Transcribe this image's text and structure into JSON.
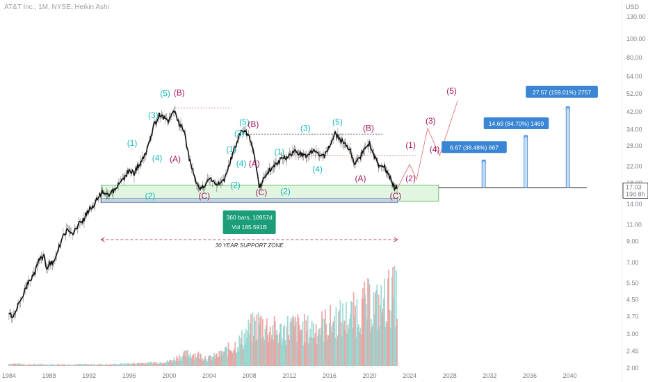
{
  "header": {
    "title": "AT&T Inc., 1M, NYSE, Heikin Ashi"
  },
  "colors": {
    "price": "#111111",
    "cyan": "#17b8bd",
    "purple": "#a3155a",
    "zone_fill": "#c8ecc9",
    "zone_border": "#4caf50",
    "info_box": "#1a9d78",
    "target_box": "#3a86d4",
    "vol_up": "#8fd3cc",
    "vol_down": "#ef9a9a"
  },
  "chart_data": {
    "type": "line",
    "title": "AT&T Inc., 1M, NYSE, Heikin Ashi",
    "y_scale": "log",
    "y_unit": "USD",
    "ylim": [
      2.0,
      130.0
    ],
    "xlim": [
      1983.8,
      2043.5
    ],
    "y_ticks": [
      130.0,
      100.0,
      80.0,
      64.0,
      52.0,
      42.0,
      34.0,
      28.0,
      22.0,
      18.0,
      14.0,
      11.0,
      9.0,
      7.0,
      5.5,
      4.5,
      3.7,
      3.0,
      2.45,
      2.0
    ],
    "y_tick_labels": [
      "130.00",
      "100.00",
      "80.00",
      "64.00",
      "52.00",
      "42.00",
      "34.00",
      "28.00",
      "22.00",
      "18.00",
      "14.00",
      "11.00",
      "9.00",
      "7.00",
      "5.50",
      "4.50",
      "3.70",
      "3.00",
      "2.45",
      "2.00"
    ],
    "x_ticks": [
      1984,
      1988,
      1992,
      1996,
      2000,
      2004,
      2008,
      2012,
      2016,
      2020,
      2024,
      2028,
      2032,
      2036,
      2040
    ],
    "x_tick_labels": [
      "1984",
      "1988",
      "1992",
      "1996",
      "2000",
      "2004",
      "2008",
      "2012",
      "2016",
      "2020",
      "2024",
      "2028",
      "2032",
      "2036",
      "2040"
    ],
    "price_series": {
      "x": [
        1984.0,
        1984.5,
        1985.0,
        1985.5,
        1986.0,
        1986.5,
        1987.0,
        1987.5,
        1987.8,
        1988.0,
        1988.5,
        1989.0,
        1989.5,
        1990.0,
        1990.5,
        1991.0,
        1991.5,
        1992.0,
        1992.5,
        1993.0,
        1993.5,
        1994.0,
        1994.5,
        1995.0,
        1995.5,
        1996.0,
        1996.5,
        1997.0,
        1997.5,
        1998.0,
        1998.5,
        1999.0,
        1999.5,
        2000.0,
        2000.5,
        2001.0,
        2001.5,
        2002.0,
        2002.5,
        2003.0,
        2003.5,
        2004.0,
        2004.5,
        2005.0,
        2005.5,
        2006.0,
        2006.5,
        2007.0,
        2007.5,
        2008.0,
        2008.5,
        2009.0,
        2009.5,
        2010.0,
        2010.5,
        2011.0,
        2011.5,
        2012.0,
        2012.5,
        2013.0,
        2013.5,
        2014.0,
        2014.5,
        2015.0,
        2015.5,
        2016.0,
        2016.5,
        2017.0,
        2017.5,
        2018.0,
        2018.5,
        2019.0,
        2019.5,
        2020.0,
        2020.5,
        2021.0,
        2021.5,
        2022.0,
        2022.5,
        2022.8
      ],
      "y": [
        3.8,
        3.7,
        4.4,
        4.9,
        5.6,
        6.1,
        7.2,
        7.6,
        6.4,
        6.8,
        7.2,
        8.4,
        9.8,
        10.4,
        10.0,
        11.2,
        11.8,
        13.2,
        13.8,
        15.5,
        16.2,
        15.8,
        16.4,
        17.8,
        19.2,
        21.0,
        20.2,
        22.5,
        24.5,
        29.0,
        36.0,
        40.5,
        39.0,
        38.0,
        42.0,
        37.0,
        33.0,
        24.0,
        19.5,
        16.5,
        17.5,
        19.0,
        18.2,
        17.8,
        18.5,
        22.5,
        27.0,
        32.0,
        34.0,
        31.0,
        25.5,
        17.0,
        19.0,
        21.0,
        22.5,
        23.5,
        24.2,
        25.0,
        26.5,
        25.8,
        24.8,
        25.6,
        26.2,
        25.5,
        24.8,
        27.5,
        32.5,
        30.5,
        29.0,
        27.0,
        23.0,
        24.0,
        27.5,
        29.0,
        24.5,
        22.0,
        21.8,
        19.5,
        17.0,
        17.03
      ]
    },
    "volume_series": {
      "x": [
        1984,
        1986,
        1988,
        1990,
        1992,
        1994,
        1996,
        1998,
        2000,
        2001,
        2002,
        2003,
        2004,
        2005,
        2006,
        2007,
        2008,
        2009,
        2010,
        2011,
        2012,
        2013,
        2014,
        2015,
        2016,
        2017,
        2018,
        2019,
        2020,
        2021,
        2022
      ],
      "relative_volume": [
        0.03,
        0.02,
        0.02,
        0.02,
        0.02,
        0.02,
        0.03,
        0.04,
        0.06,
        0.12,
        0.16,
        0.14,
        0.1,
        0.14,
        0.22,
        0.3,
        0.45,
        0.55,
        0.48,
        0.42,
        0.5,
        0.48,
        0.46,
        0.5,
        0.55,
        0.6,
        0.62,
        0.72,
        0.8,
        0.75,
        0.9
      ]
    },
    "last_price": {
      "value": "17.03",
      "countdown": "19d 8h"
    },
    "support_zone": {
      "y_low": 14.5,
      "y_high": 17.6,
      "x_start": 1993.2,
      "x_end": 2026.9,
      "label": "30 YEAR SUPPORT ZONE"
    },
    "measure": {
      "x_start": 1993.2,
      "x_end": 2022.8,
      "bars_label": "360 bars, 10957d",
      "vol_label": "Vol 185.591B"
    },
    "horizontal_levels": [
      {
        "y": 44.0,
        "x_start": 2000.6,
        "x_end": 2006.2,
        "color": "#e57373"
      },
      {
        "y": 32.2,
        "x_start": 2007.0,
        "x_end": 2021.4,
        "color": "#555555"
      },
      {
        "y": 25.0,
        "x_start": 2012.0,
        "x_end": 2024.6,
        "color": "#e57373"
      },
      {
        "y": 17.03,
        "x_start": 2026.9,
        "x_end": 2041.7,
        "color": "#111111"
      }
    ],
    "wave_labels": [
      {
        "text": "(5)",
        "x": 1999.6,
        "y": 50.5,
        "color": "cyan"
      },
      {
        "text": "(B)",
        "x": 2001.0,
        "y": 51.0,
        "color": "purple"
      },
      {
        "text": "(3)",
        "x": 1998.4,
        "y": 39.0,
        "color": "cyan"
      },
      {
        "text": "(1)",
        "x": 1996.3,
        "y": 28.0,
        "color": "cyan"
      },
      {
        "text": "(4)",
        "x": 1998.8,
        "y": 23.5,
        "color": "cyan"
      },
      {
        "text": "(A)",
        "x": 2000.6,
        "y": 23.2,
        "color": "purple"
      },
      {
        "text": "(2)",
        "x": 1998.1,
        "y": 15.0,
        "color": "cyan"
      },
      {
        "text": "(C)",
        "x": 2003.5,
        "y": 15.0,
        "color": "purple"
      },
      {
        "text": "(5)",
        "x": 2007.5,
        "y": 36.0,
        "color": "cyan"
      },
      {
        "text": "(B)",
        "x": 2008.4,
        "y": 35.0,
        "color": "purple"
      },
      {
        "text": "(3)",
        "x": 2007.0,
        "y": 31.5,
        "color": "cyan"
      },
      {
        "text": "(1)",
        "x": 2006.2,
        "y": 26.0,
        "color": "cyan"
      },
      {
        "text": "(4)",
        "x": 2007.2,
        "y": 22.0,
        "color": "cyan"
      },
      {
        "text": "(A)",
        "x": 2008.5,
        "y": 22.0,
        "color": "purple"
      },
      {
        "text": "(2)",
        "x": 2006.6,
        "y": 17.0,
        "color": "cyan"
      },
      {
        "text": "(C)",
        "x": 2009.2,
        "y": 15.6,
        "color": "purple"
      },
      {
        "text": "(1)",
        "x": 2011.0,
        "y": 25.3,
        "color": "cyan"
      },
      {
        "text": "(2)",
        "x": 2011.6,
        "y": 15.8,
        "color": "cyan"
      },
      {
        "text": "(3)",
        "x": 2013.6,
        "y": 33.5,
        "color": "cyan"
      },
      {
        "text": "(4)",
        "x": 2014.8,
        "y": 20.6,
        "color": "cyan"
      },
      {
        "text": "(5)",
        "x": 2016.8,
        "y": 36.0,
        "color": "cyan"
      },
      {
        "text": "(B)",
        "x": 2019.9,
        "y": 33.5,
        "color": "purple"
      },
      {
        "text": "(A)",
        "x": 2019.1,
        "y": 18.4,
        "color": "purple"
      },
      {
        "text": "(C)",
        "x": 2022.6,
        "y": 15.0,
        "color": "purple"
      },
      {
        "text": "(2)",
        "x": 2024.1,
        "y": 18.4,
        "color": "purple"
      },
      {
        "text": "(1)",
        "x": 2024.1,
        "y": 27.3,
        "color": "purple"
      },
      {
        "text": "(4)",
        "x": 2026.5,
        "y": 26.0,
        "color": "purple"
      },
      {
        "text": "(3)",
        "x": 2026.1,
        "y": 36.5,
        "color": "purple"
      },
      {
        "text": "(5)",
        "x": 2028.2,
        "y": 52.0,
        "color": "purple"
      }
    ],
    "projection": {
      "x": [
        2022.8,
        2024.0,
        2024.7,
        2025.8,
        2027.0,
        2028.8
      ],
      "y": [
        17.0,
        22.5,
        18.8,
        34.5,
        25.0,
        48.0
      ]
    },
    "targets": [
      {
        "label": "6.67 (38.48%) 667",
        "x": 2031.4,
        "y_top": 23.7,
        "box_y": 27.5,
        "box_x_start": 2027.2,
        "box_x_end": 2033.7
      },
      {
        "label": "14.69 (84.70%) 1469",
        "x": 2035.6,
        "y_top": 31.72,
        "box_y": 36.5,
        "box_x_start": 2031.4,
        "box_x_end": 2037.9
      },
      {
        "label": "27.57 (159.01%) 2757",
        "x": 2039.8,
        "y_top": 44.6,
        "box_y": 53.0,
        "box_x_start": 2035.6,
        "box_x_end": 2042.8
      }
    ]
  }
}
